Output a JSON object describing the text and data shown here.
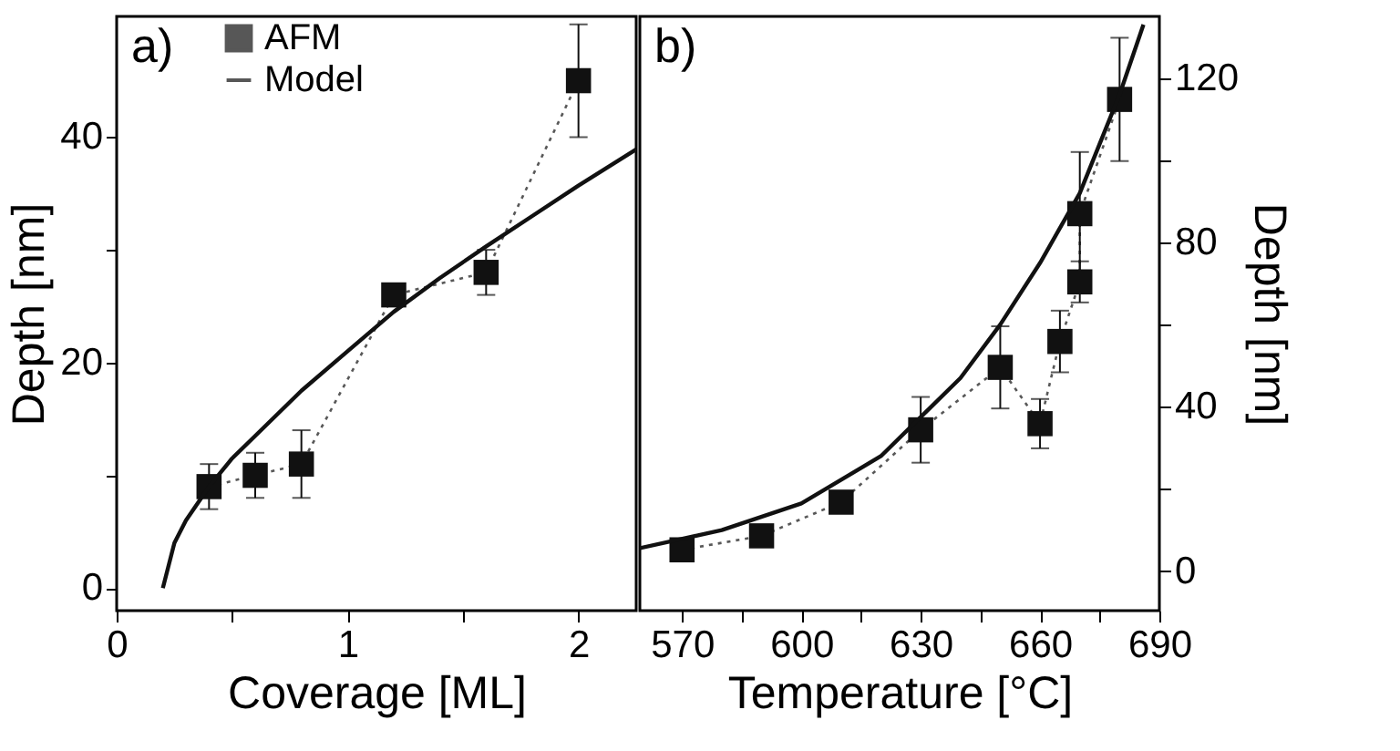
{
  "chart_data": [
    {
      "type": "line",
      "annotations": [
        "a)"
      ],
      "xlabel": "Coverage [ML]",
      "ylabel": "Depth [nm]",
      "xlim": [
        0,
        2.25
      ],
      "xticks": [
        0,
        {
          "value": 0.5,
          "label": null
        },
        1,
        {
          "value": 1.5,
          "label": null
        },
        2
      ],
      "ylim": [
        -2,
        50.7
      ],
      "yticks": [
        0,
        {
          "value": 10,
          "label": null
        },
        20,
        {
          "value": 30,
          "label": null
        },
        40
      ],
      "legend": "top left",
      "grid": false,
      "series": [
        {
          "name": "AFM",
          "color": "#111111",
          "marker": "square",
          "line_style": "dotted",
          "x": [
            0.4,
            0.6,
            0.8,
            1.2,
            1.6,
            2.0
          ],
          "values": [
            9,
            10,
            11,
            26,
            28,
            45
          ],
          "errors": [
            2,
            2,
            3,
            null,
            2,
            5
          ]
        },
        {
          "name": "Model",
          "color": "#111111",
          "marker": "none",
          "line_style": "solid",
          "x": [
            0.2,
            0.25,
            0.3,
            0.4,
            0.5,
            0.6,
            0.8,
            1.0,
            1.2,
            1.4,
            1.6,
            1.8,
            2.0,
            2.25
          ],
          "values": [
            0,
            4,
            6,
            9,
            11.5,
            13.5,
            17.5,
            21,
            24.5,
            27.5,
            30.3,
            33,
            35.7,
            38.9
          ]
        }
      ]
    },
    {
      "type": "line",
      "annotations": [
        "b)"
      ],
      "xlabel": "Temperature [°C]",
      "y2label": "Depth [nm]",
      "xlim": [
        559.4,
        690
      ],
      "xticks": [
        570,
        {
          "value": 585,
          "label": null
        },
        600,
        {
          "value": 615,
          "label": null
        },
        630,
        {
          "value": 645,
          "label": null
        },
        660,
        {
          "value": 675,
          "label": null
        },
        690
      ],
      "y2lim": [
        -9.6,
        135
      ],
      "y2ticks": [
        0,
        {
          "value": 20,
          "label": null
        },
        40,
        {
          "value": 60,
          "label": null
        },
        80,
        {
          "value": 100,
          "label": null
        },
        120
      ],
      "grid": false,
      "series": [
        {
          "color": "#111111",
          "marker": "square",
          "line_style": "dotted",
          "axis": "y2",
          "x": [
            570,
            590,
            610,
            630,
            650,
            660,
            665,
            670,
            670,
            680
          ],
          "values": [
            5.2,
            8.6,
            16.8,
            34.4,
            49.6,
            35.9,
            55.9,
            70.4,
            87,
            114.8
          ],
          "errors": [
            null,
            null,
            null,
            8,
            10,
            6,
            7.5,
            5,
            15,
            15
          ]
        },
        {
          "color": "#111111",
          "marker": "none",
          "line_style": "solid",
          "axis": "y2",
          "x": [
            559.4,
            580,
            600,
            620,
            640,
            650,
            660,
            670,
            680,
            686
          ],
          "values": [
            5.6,
            10,
            16.5,
            28,
            47,
            60,
            75,
            92,
            116,
            133
          ]
        }
      ]
    }
  ]
}
